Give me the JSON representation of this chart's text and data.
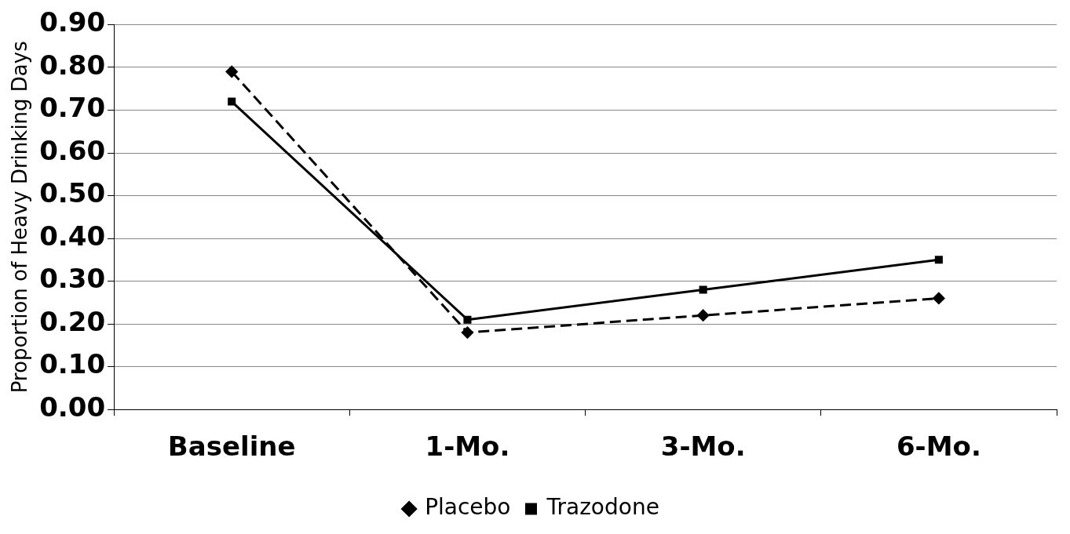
{
  "chart_data": {
    "type": "line",
    "ylabel": "Proportion of Heavy Drinking Days",
    "categories": [
      "Baseline",
      "1-Mo.",
      "3-Mo.",
      "6-Mo."
    ],
    "series": [
      {
        "name": "Placebo",
        "color": "#000000",
        "values": [
          0.79,
          0.18,
          0.22,
          0.26
        ],
        "marker": "diamond",
        "line_style": "dashed"
      },
      {
        "name": "Trazodone",
        "color": "#000000",
        "values": [
          0.72,
          0.21,
          0.28,
          0.35
        ],
        "marker": "square",
        "line_style": "solid"
      }
    ],
    "ylim": [
      0,
      0.9
    ],
    "yticks": [
      {
        "value": 0,
        "label": "0.00"
      },
      {
        "value": 0.1,
        "label": "0.10"
      },
      {
        "value": 0.2,
        "label": "0.20"
      },
      {
        "value": 0.3,
        "label": "0.30"
      },
      {
        "value": 0.4,
        "label": "0.40"
      },
      {
        "value": 0.5,
        "label": "0.50"
      },
      {
        "value": 0.6,
        "label": "0.60"
      },
      {
        "value": 0.7,
        "label": "0.70"
      },
      {
        "value": 0.8,
        "label": "0.80"
      },
      {
        "value": 0.9,
        "label": "0.90"
      }
    ],
    "grid": "y",
    "legend": "bottom"
  }
}
